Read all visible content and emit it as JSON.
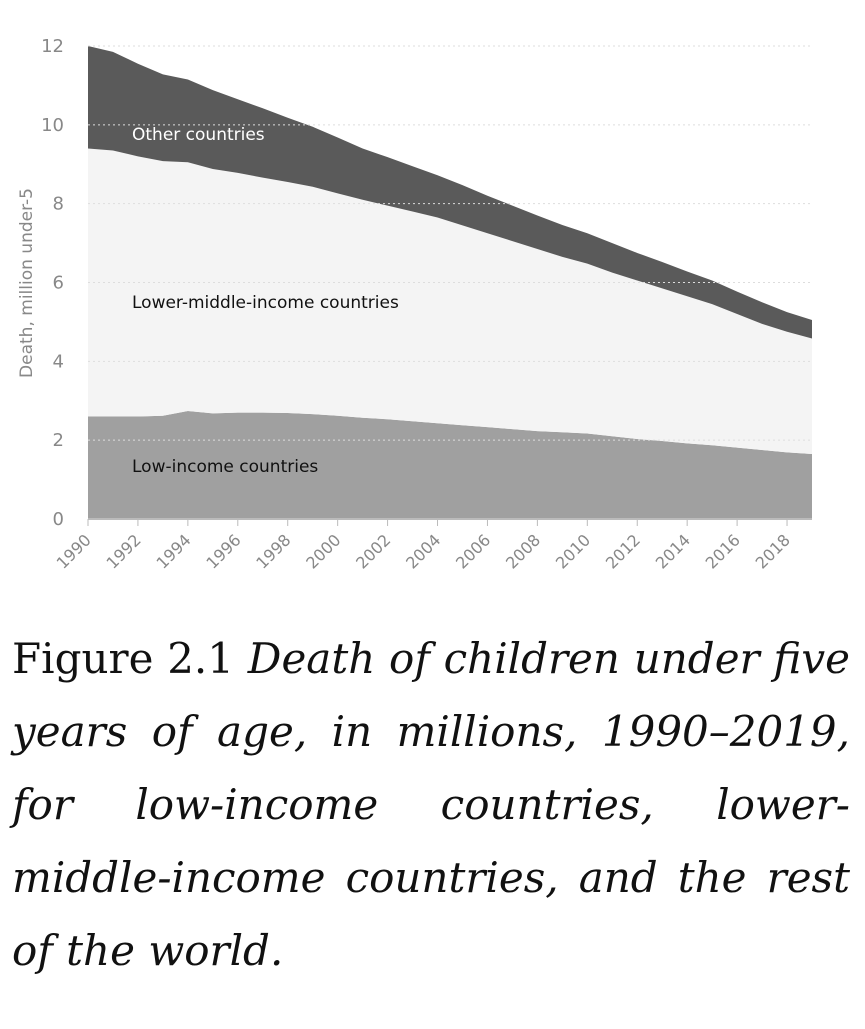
{
  "chart_data": {
    "type": "stacked-area",
    "y_label": "Death, million under-5",
    "x": [
      1990,
      1991,
      1992,
      1993,
      1994,
      1995,
      1996,
      1997,
      1998,
      1999,
      2000,
      2001,
      2002,
      2003,
      2004,
      2005,
      2006,
      2007,
      2008,
      2009,
      2010,
      2011,
      2012,
      2013,
      2014,
      2015,
      2016,
      2017,
      2018,
      2019
    ],
    "series": [
      {
        "name": "Low-income countries",
        "color": "#a0a0a0",
        "values": [
          2.6,
          2.6,
          2.6,
          2.62,
          2.74,
          2.68,
          2.7,
          2.7,
          2.69,
          2.66,
          2.62,
          2.57,
          2.53,
          2.48,
          2.43,
          2.38,
          2.33,
          2.28,
          2.23,
          2.2,
          2.17,
          2.1,
          2.03,
          1.98,
          1.92,
          1.87,
          1.81,
          1.75,
          1.69,
          1.65
        ]
      },
      {
        "name": "Lower-middle-income countries",
        "color": "#f4f4f4",
        "values": [
          6.8,
          6.75,
          6.6,
          6.46,
          6.31,
          6.2,
          6.08,
          5.96,
          5.86,
          5.77,
          5.64,
          5.53,
          5.42,
          5.32,
          5.22,
          5.07,
          4.92,
          4.77,
          4.62,
          4.45,
          4.31,
          4.15,
          4.02,
          3.87,
          3.73,
          3.58,
          3.39,
          3.2,
          3.06,
          2.93
        ]
      },
      {
        "name": "Other countries",
        "color": "#5a5a5a",
        "values": [
          2.6,
          2.5,
          2.35,
          2.2,
          2.1,
          2.0,
          1.87,
          1.76,
          1.63,
          1.52,
          1.42,
          1.3,
          1.23,
          1.15,
          1.07,
          1.02,
          0.95,
          0.9,
          0.85,
          0.81,
          0.77,
          0.75,
          0.7,
          0.67,
          0.63,
          0.6,
          0.57,
          0.55,
          0.5,
          0.47
        ]
      }
    ],
    "xlim": [
      1990,
      2019
    ],
    "xticks": [
      1990,
      1992,
      1994,
      1996,
      1998,
      2000,
      2002,
      2004,
      2006,
      2008,
      2010,
      2012,
      2014,
      2016,
      2018
    ],
    "ylim": [
      0,
      12
    ],
    "yticks": [
      0,
      2,
      4,
      6,
      8,
      10,
      12
    ],
    "grid": true
  },
  "caption": {
    "label": "Figure 2.1",
    "text": "Death of children under five years of age, in millions, 1990–2019, for low-income countries, lower-middle-income countries, and the rest of the world."
  }
}
